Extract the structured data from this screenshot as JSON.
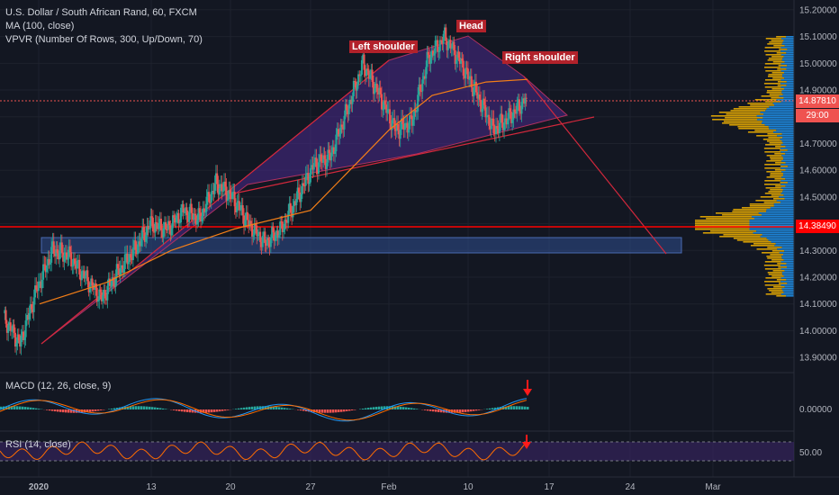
{
  "header": {
    "symbol_line": "U.S. Dollar / South African Rand, 60, FXCM",
    "ma_line": "MA (100, close)",
    "vpvr_line": "VPVR (Number Of Rows, 300, Up/Down, 70)"
  },
  "annotations": {
    "left_shoulder": "Left shoulder",
    "head": "Head",
    "right_shoulder": "Right shoulder"
  },
  "indicators": {
    "macd_label": "MACD (12, 26, close, 9)",
    "rsi_label": "RSI (14, close)"
  },
  "price_tags": {
    "last_price": "14.87810",
    "countdown": "29:00",
    "support_level": "14.38490"
  },
  "colors": {
    "background": "#131722",
    "up_candle": "#26a69a",
    "down_candle": "#ef5350",
    "support_line": "#ff0000",
    "pattern_fill": "#4a2a8c",
    "zone_fill": "#2f4f8f",
    "ma_line": "#f57f17",
    "volume_up": "#2196f3",
    "volume_down": "#f5b400"
  },
  "chart_data": [
    {
      "type": "line",
      "title": "U.S. Dollar / South African Rand, 60, FXCM",
      "x_ticks": [
        "2020",
        "13",
        "20",
        "27",
        "Feb",
        "10",
        "17",
        "24",
        "Mar"
      ],
      "y_ticks": [
        13.9,
        14.0,
        14.1,
        14.2,
        14.3,
        14.4,
        14.5,
        14.6,
        14.7,
        14.8,
        14.9,
        15.0,
        15.1,
        15.2
      ],
      "ylim": [
        13.85,
        15.23
      ],
      "series": [
        {
          "name": "USD/ZAR",
          "x": [
            "Dec 31",
            "Jan 2",
            "Jan 3",
            "Jan 6",
            "Jan 7",
            "Jan 8",
            "Jan 9",
            "Jan 10",
            "Jan 13",
            "Jan 14",
            "Jan 15",
            "Jan 16",
            "Jan 17",
            "Jan 20",
            "Jan 21",
            "Jan 22",
            "Jan 23",
            "Jan 24",
            "Jan 27",
            "Jan 28",
            "Jan 29",
            "Jan 30",
            "Jan 31",
            "Feb 3",
            "Feb 4",
            "Feb 5",
            "Feb 6",
            "Feb 7",
            "Feb 10",
            "Feb 11",
            "Feb 12",
            "Feb 13",
            "Feb 14"
          ],
          "values": [
            14.05,
            13.95,
            14.15,
            14.3,
            14.28,
            14.2,
            14.12,
            14.22,
            14.3,
            14.4,
            14.38,
            14.45,
            14.42,
            14.55,
            14.5,
            14.4,
            14.33,
            14.38,
            14.5,
            14.62,
            14.65,
            14.82,
            15.0,
            14.88,
            14.75,
            14.78,
            15.02,
            15.1,
            15.0,
            14.88,
            14.75,
            14.8,
            14.87
          ]
        },
        {
          "name": "MA (100, close)",
          "x": [
            "Jan 2",
            "Jan 8",
            "Jan 14",
            "Jan 20",
            "Jan 27",
            "Feb 3",
            "Feb 7",
            "Feb 11",
            "Feb 14"
          ],
          "values": [
            14.1,
            14.18,
            14.3,
            14.38,
            14.45,
            14.75,
            14.88,
            14.93,
            14.94
          ]
        }
      ],
      "support_level": 14.3849,
      "last_price": 14.8781
    },
    {
      "type": "line",
      "title": "MACD (12, 26, close, 9)",
      "y_ticks": [
        0.0
      ]
    },
    {
      "type": "line",
      "title": "RSI (14, close)",
      "y_ticks": [
        50.0
      ]
    }
  ]
}
